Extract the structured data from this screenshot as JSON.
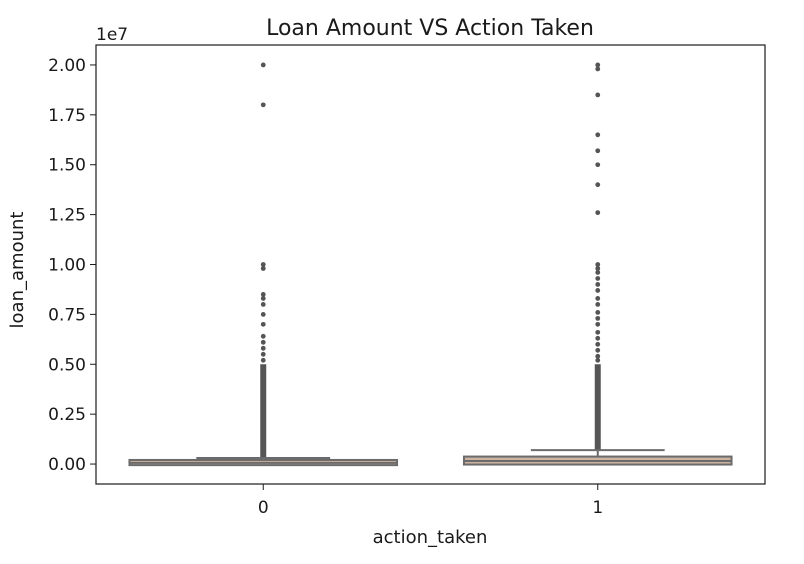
{
  "chart_data": {
    "type": "box",
    "title": "Loan Amount VS Action Taken",
    "xlabel": "action_taken",
    "ylabel": "loan_amount",
    "y_offset_text": "1e7",
    "y_scale": 10000000,
    "categories": [
      "0",
      "1"
    ],
    "ylim": [
      -1000000,
      21000000
    ],
    "yticks": [
      0,
      2500000,
      5000000,
      7500000,
      10000000,
      12500000,
      15000000,
      17500000,
      20000000
    ],
    "ytick_labels": [
      "0.00",
      "0.25",
      "0.50",
      "0.75",
      "1.00",
      "1.25",
      "1.50",
      "1.75",
      "2.00"
    ],
    "grid": false,
    "boxes": [
      {
        "category": "0",
        "whisker_low": 0,
        "q1": 20000,
        "median": 60000,
        "q3": 130000,
        "whisker_high": 300000,
        "outlier_band": [
          300000,
          5000000
        ],
        "outliers": [
          5200000,
          5500000,
          5800000,
          6100000,
          6400000,
          7000000,
          7500000,
          8000000,
          8300000,
          8500000,
          9800000,
          10000000,
          18000000,
          20000000
        ]
      },
      {
        "category": "1",
        "whisker_low": 0,
        "q1": 50000,
        "median": 150000,
        "q3": 300000,
        "whisker_high": 700000,
        "outlier_band": [
          700000,
          5000000
        ],
        "outliers": [
          5200000,
          5400000,
          5700000,
          6000000,
          6300000,
          6600000,
          7000000,
          7300000,
          7600000,
          8000000,
          8300000,
          8700000,
          9000000,
          9300000,
          9600000,
          9800000,
          10000000,
          12600000,
          14000000,
          15000000,
          15700000,
          16500000,
          18500000,
          19800000,
          20000000
        ]
      }
    ],
    "colors": {
      "box_fill": "#cbb3a2",
      "line": "#6b6b6b",
      "outlier": "#555555",
      "axes": "#1a1a1a"
    }
  }
}
